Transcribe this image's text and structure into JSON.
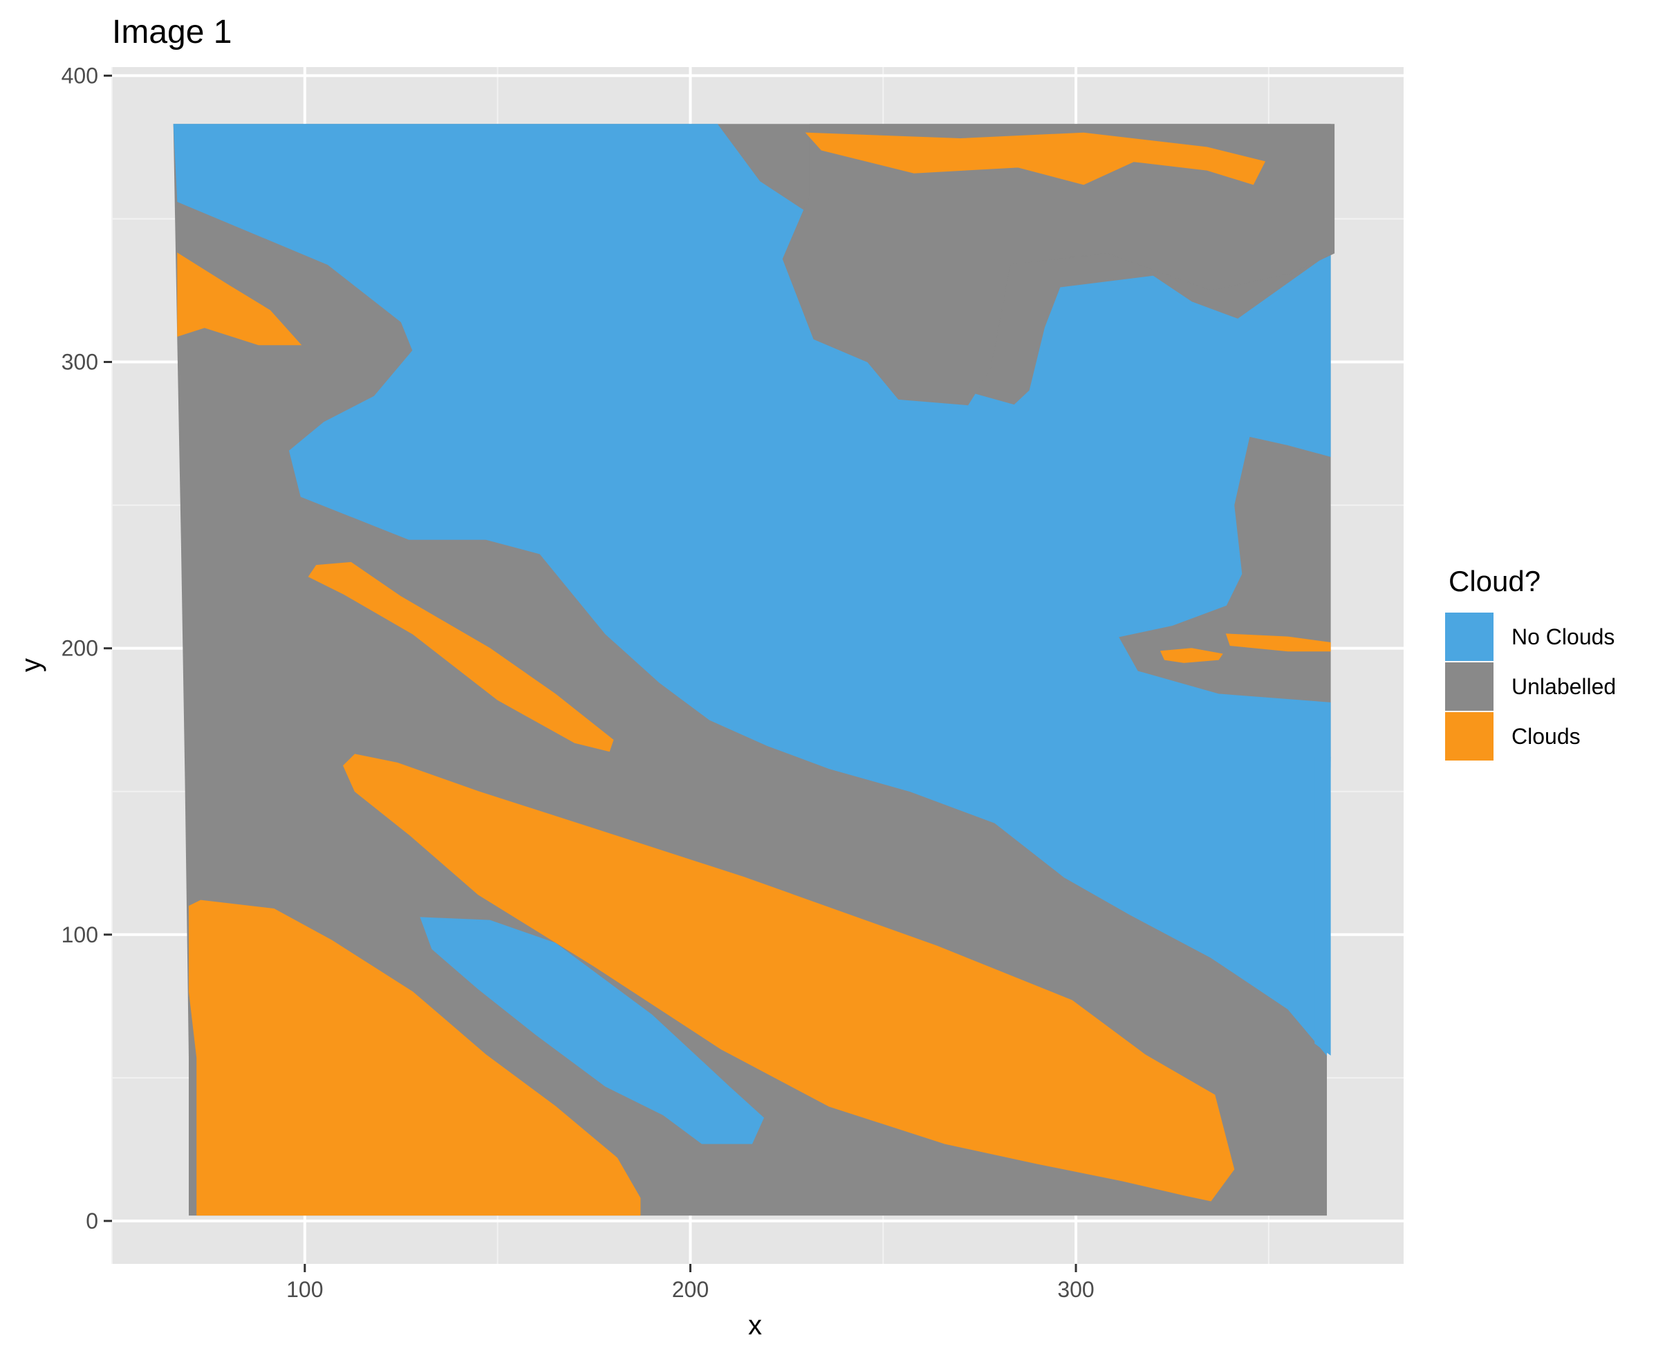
{
  "chart_data": {
    "type": "heatmap",
    "title": "Image 1",
    "xlabel": "x",
    "ylabel": "y",
    "xlim": [
      50,
      385
    ],
    "ylim": [
      -15,
      403
    ],
    "x_ticks": [
      100,
      200,
      300
    ],
    "y_ticks": [
      0,
      100,
      200,
      300,
      400
    ],
    "x_tick_labels": [
      "100",
      "200",
      "300"
    ],
    "y_tick_labels": [
      "0",
      "100",
      "200",
      "300",
      "400"
    ],
    "grid": true,
    "legend": {
      "title": "Cloud?",
      "position": "right",
      "entries": [
        {
          "label": "No Clouds",
          "color": "#4ba6e1"
        },
        {
          "label": "Unlabelled",
          "color": "#898989"
        },
        {
          "label": "Clouds",
          "color": "#f9961a"
        }
      ]
    },
    "colors": {
      "panel_background": "#e5e5e5",
      "grid_major": "#ffffff",
      "grid_minor": "#f2f2f2"
    },
    "regions": [
      {
        "label": "Unlabelled",
        "polygon": [
          [
            66,
            383
          ],
          [
            366,
            383
          ],
          [
            366,
            162
          ],
          [
            365,
            57
          ],
          [
            365,
            2
          ],
          [
            70,
            2
          ],
          [
            70,
            57
          ],
          [
            69,
            155
          ],
          [
            68,
            236
          ],
          [
            67,
            308
          ]
        ]
      },
      {
        "label": "No Clouds",
        "polygon": [
          [
            66,
            383
          ],
          [
            207,
            383
          ],
          [
            218,
            363
          ],
          [
            235,
            348
          ],
          [
            243,
            320
          ],
          [
            252,
            300
          ],
          [
            258,
            296
          ],
          [
            268,
            291
          ],
          [
            284,
            285
          ],
          [
            288,
            290
          ],
          [
            292,
            312
          ],
          [
            296,
            326
          ],
          [
            320,
            330
          ],
          [
            330,
            321
          ],
          [
            342,
            315
          ],
          [
            366,
            338
          ],
          [
            366,
            267
          ],
          [
            355,
            271
          ],
          [
            345,
            274
          ],
          [
            341,
            250
          ],
          [
            343,
            226
          ],
          [
            339,
            215
          ],
          [
            325,
            208
          ],
          [
            311,
            204
          ],
          [
            316,
            192
          ],
          [
            337,
            184
          ],
          [
            366,
            181
          ],
          [
            366,
            159
          ],
          [
            365,
            58
          ],
          [
            355,
            74
          ],
          [
            335,
            92
          ],
          [
            314,
            107
          ],
          [
            297,
            120
          ],
          [
            279,
            139
          ],
          [
            257,
            150
          ],
          [
            236,
            158
          ],
          [
            220,
            166
          ],
          [
            205,
            175
          ],
          [
            192,
            188
          ],
          [
            178,
            205
          ],
          [
            161,
            233
          ],
          [
            147,
            238
          ],
          [
            127,
            238
          ],
          [
            99,
            253
          ],
          [
            96,
            269
          ],
          [
            105,
            279
          ],
          [
            118,
            288
          ],
          [
            128,
            304
          ],
          [
            125,
            314
          ],
          [
            106,
            334
          ],
          [
            67,
            356
          ]
        ]
      },
      {
        "label": "Unlabelled",
        "polygon": [
          [
            231,
            383
          ],
          [
            367,
            383
          ],
          [
            367,
            338
          ],
          [
            356,
            331
          ],
          [
            335,
            325
          ],
          [
            308,
            338
          ],
          [
            283,
            334
          ],
          [
            278,
            298
          ],
          [
            272,
            285
          ],
          [
            254,
            287
          ],
          [
            246,
            300
          ],
          [
            232,
            308
          ],
          [
            224,
            336
          ],
          [
            231,
            358
          ]
        ]
      },
      {
        "label": "Clouds",
        "polygon": [
          [
            230,
            380
          ],
          [
            234,
            374
          ],
          [
            258,
            366
          ],
          [
            285,
            368
          ],
          [
            302,
            362
          ],
          [
            315,
            370
          ],
          [
            334,
            367
          ],
          [
            346,
            362
          ],
          [
            349,
            370
          ],
          [
            334,
            375
          ],
          [
            302,
            380
          ],
          [
            270,
            378
          ]
        ]
      },
      {
        "label": "Clouds",
        "polygon": [
          [
            67,
            338
          ],
          [
            80,
            327
          ],
          [
            91,
            318
          ],
          [
            99,
            306
          ],
          [
            88,
            306
          ],
          [
            74,
            312
          ],
          [
            67,
            309
          ]
        ]
      },
      {
        "label": "Clouds",
        "polygon": [
          [
            103,
            229
          ],
          [
            112,
            230
          ],
          [
            125,
            218
          ],
          [
            148,
            200
          ],
          [
            165,
            184
          ],
          [
            180,
            168
          ],
          [
            179,
            164
          ],
          [
            170,
            167
          ],
          [
            150,
            182
          ],
          [
            128,
            205
          ],
          [
            110,
            219
          ],
          [
            101,
            225
          ]
        ]
      },
      {
        "label": "Clouds",
        "polygon": [
          [
            110,
            159
          ],
          [
            113,
            163
          ],
          [
            124,
            160
          ],
          [
            145,
            150
          ],
          [
            175,
            137
          ],
          [
            214,
            120
          ],
          [
            264,
            96
          ],
          [
            299,
            77
          ],
          [
            318,
            58
          ],
          [
            336,
            44
          ],
          [
            341,
            18
          ],
          [
            335,
            7
          ],
          [
            328,
            9
          ],
          [
            312,
            14
          ],
          [
            290,
            20
          ],
          [
            266,
            27
          ],
          [
            236,
            40
          ],
          [
            208,
            60
          ],
          [
            175,
            89
          ],
          [
            145,
            114
          ],
          [
            127,
            135
          ],
          [
            113,
            150
          ]
        ]
      },
      {
        "label": "No Clouds",
        "polygon": [
          [
            130,
            106
          ],
          [
            148,
            105
          ],
          [
            165,
            97
          ],
          [
            190,
            72
          ],
          [
            210,
            47
          ],
          [
            219,
            36
          ],
          [
            216,
            27
          ],
          [
            203,
            27
          ],
          [
            193,
            37
          ],
          [
            178,
            47
          ],
          [
            160,
            65
          ],
          [
            145,
            81
          ],
          [
            133,
            95
          ]
        ]
      },
      {
        "label": "Clouds",
        "polygon": [
          [
            70,
            110
          ],
          [
            73,
            112
          ],
          [
            92,
            109
          ],
          [
            107,
            98
          ],
          [
            128,
            80
          ],
          [
            147,
            58
          ],
          [
            165,
            40
          ],
          [
            181,
            22
          ],
          [
            187,
            8
          ],
          [
            187,
            2
          ],
          [
            72,
            2
          ],
          [
            72,
            57
          ],
          [
            70,
            80
          ]
        ]
      },
      {
        "label": "Clouds",
        "polygon": [
          [
            322,
            199
          ],
          [
            330,
            200
          ],
          [
            338,
            198
          ],
          [
            337,
            196
          ],
          [
            328,
            195
          ],
          [
            323,
            196
          ]
        ]
      },
      {
        "label": "Clouds",
        "polygon": [
          [
            339,
            205
          ],
          [
            355,
            204
          ],
          [
            366,
            202
          ],
          [
            366,
            199
          ],
          [
            355,
            199
          ],
          [
            340,
            201
          ]
        ]
      },
      {
        "label": "No Clouds",
        "polygon": [
          [
            362,
            162
          ],
          [
            366,
            162
          ],
          [
            366,
            58
          ],
          [
            362,
            62
          ]
        ]
      }
    ]
  }
}
